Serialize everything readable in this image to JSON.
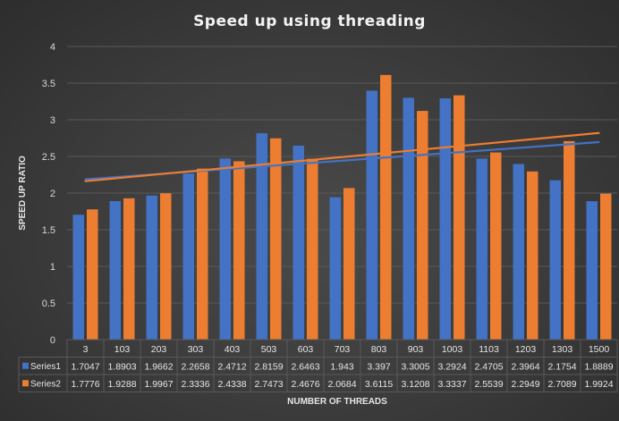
{
  "chart_data": {
    "type": "bar",
    "title": "Speed up using threading",
    "xlabel": "NUMBER OF THREADS",
    "ylabel": "SPEED UP RATIO",
    "ylim": [
      0,
      4
    ],
    "yticks": [
      "0",
      "0.5",
      "1",
      "1.5",
      "2",
      "2.5",
      "3",
      "3.5",
      "4"
    ],
    "categories": [
      "3",
      "103",
      "203",
      "303",
      "403",
      "503",
      "603",
      "703",
      "803",
      "903",
      "1003",
      "1103",
      "1203",
      "1303",
      "1500"
    ],
    "series": [
      {
        "name": "Series1",
        "color": "#4472c4",
        "values": [
          1.7047,
          1.8903,
          1.9662,
          2.2658,
          2.4712,
          2.8159,
          2.6463,
          1.943,
          3.397,
          3.3005,
          3.2924,
          2.4705,
          2.3964,
          2.1754,
          1.8889
        ],
        "labels": [
          "1.7047",
          "1.8903",
          "1.9662",
          "2.2658",
          "2.4712",
          "2.8159",
          "2.6463",
          "1.943",
          "3.397",
          "3.3005",
          "3.2924",
          "2.4705",
          "2.3964",
          "2.1754",
          "1.8889"
        ]
      },
      {
        "name": "Series2",
        "color": "#ed7d31",
        "values": [
          1.7776,
          1.9288,
          1.9967,
          2.3336,
          2.4338,
          2.7473,
          2.4676,
          2.0684,
          3.6115,
          3.1208,
          3.3337,
          2.5539,
          2.2949,
          2.7089,
          1.9924
        ],
        "labels": [
          "1.7776",
          "1.9288",
          "1.9967",
          "2.3336",
          "2.4338",
          "2.7473",
          "2.4676",
          "2.0684",
          "3.6115",
          "3.1208",
          "3.3337",
          "2.5539",
          "2.2949",
          "2.7089",
          "1.9924"
        ]
      }
    ],
    "trendlines": [
      {
        "series": "Series1",
        "type": "linear",
        "color": "#4472c4"
      },
      {
        "series": "Series2",
        "type": "linear",
        "color": "#ed7d31"
      }
    ],
    "gridlines": true,
    "data_table": true
  }
}
